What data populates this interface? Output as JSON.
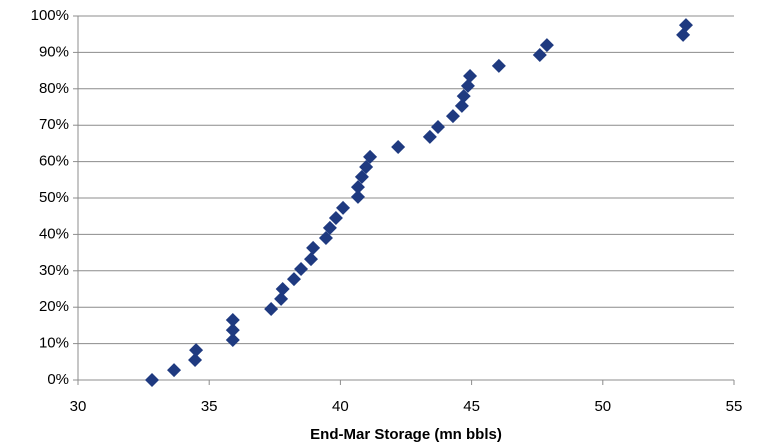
{
  "chart_data": {
    "type": "scatter",
    "x_label": "End-Mar Storage (mn bbls)",
    "color": "#1f3a80",
    "grid": true,
    "xlim": [
      30,
      55
    ],
    "xticks": [
      30,
      35,
      40,
      45,
      50,
      55
    ],
    "ylim": [
      0,
      100
    ],
    "yticks": [
      {
        "value": 0,
        "label": "0%"
      },
      {
        "value": 10,
        "label": "10%"
      },
      {
        "value": 20,
        "label": "20%"
      },
      {
        "value": 30,
        "label": "30%"
      },
      {
        "value": 40,
        "label": "40%"
      },
      {
        "value": 50,
        "label": "50%"
      },
      {
        "value": 60,
        "label": "60%"
      },
      {
        "value": 70,
        "label": "70%"
      },
      {
        "value": 80,
        "label": "80%"
      },
      {
        "value": 90,
        "label": "90%"
      },
      {
        "value": 100,
        "label": "100%"
      }
    ],
    "x": [
      32.82,
      33.66,
      34.46,
      34.5,
      35.9,
      35.9,
      35.9,
      37.36,
      37.74,
      37.8,
      38.23,
      38.5,
      38.88,
      38.96,
      39.45,
      39.6,
      39.83,
      40.1,
      40.67,
      40.67,
      40.82,
      40.98,
      41.13,
      42.2,
      43.41,
      43.72,
      44.29,
      44.63,
      44.7,
      44.86,
      44.94,
      46.04,
      47.6,
      47.87,
      53.06,
      53.17
    ],
    "values": [
      0,
      2.7,
      5.5,
      8.2,
      11.0,
      13.7,
      16.5,
      19.5,
      22.3,
      25.0,
      27.7,
      30.5,
      33.2,
      36.3,
      39.0,
      41.8,
      44.5,
      47.3,
      50.3,
      53.0,
      55.8,
      58.5,
      61.3,
      64.0,
      66.8,
      69.5,
      72.5,
      75.3,
      78.0,
      80.8,
      83.5,
      86.3,
      89.3,
      92.0,
      94.8,
      97.5
    ]
  }
}
